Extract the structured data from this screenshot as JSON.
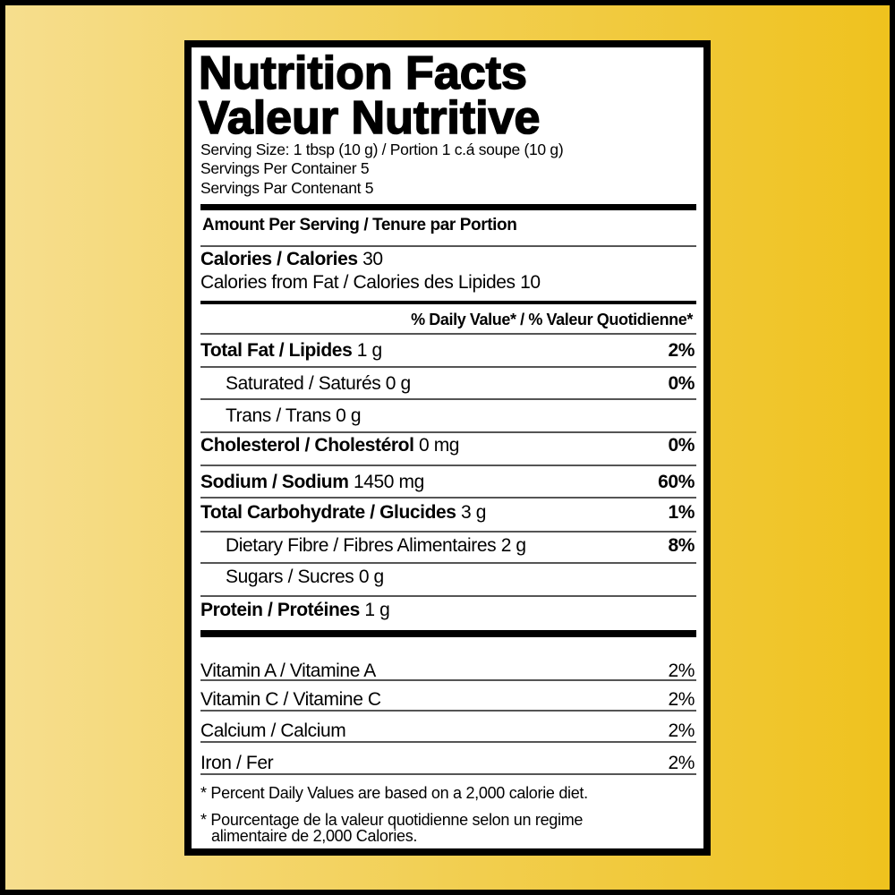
{
  "title": {
    "line1": "Nutrition Facts",
    "line2": "Valeur Nutritive"
  },
  "serving": {
    "size": "Serving Size: 1 tbsp (10 g) / Portion 1 c.á soupe (10 g)",
    "per_container_en": "Servings Per Container 5",
    "per_container_fr": "Servings Par Contenant 5"
  },
  "amount_header": "Amount Per Serving / Tenure par Portion",
  "calories": {
    "label": "Calories / Calories",
    "value": "30",
    "from_fat": "Calories from Fat / Calories des Lipides 10"
  },
  "dv_header": "% Daily Value* / % Valeur Quotidienne*",
  "nutrients": [
    {
      "label": "Total Fat / Lipides",
      "amount": "1 g",
      "dv": "2%",
      "bold": true
    },
    {
      "label": "Saturated / Saturés",
      "amount": "0 g",
      "dv": "0%",
      "bold": false
    },
    {
      "label": "Trans / Trans",
      "amount": "0 g",
      "dv": "",
      "bold": false
    },
    {
      "label": "Cholesterol / Cholestérol",
      "amount": "0 mg",
      "dv": "0%",
      "bold": true
    },
    {
      "label": "Sodium / Sodium",
      "amount": "1450 mg",
      "dv": "60%",
      "bold": true
    },
    {
      "label": "Total Carbohydrate / Glucides",
      "amount": "3 g",
      "dv": "1%",
      "bold": true
    },
    {
      "label": "Dietary Fibre / Fibres Alimentaires",
      "amount": "2 g",
      "dv": "8%",
      "bold": false
    },
    {
      "label": "Sugars / Sucres",
      "amount": "0 g",
      "dv": "",
      "bold": false
    },
    {
      "label": "Protein / Protéines",
      "amount": "1 g",
      "dv": "",
      "bold": true
    }
  ],
  "vitamins": [
    {
      "label": "Vitamin A / Vitamine A",
      "dv": "2%"
    },
    {
      "label": "Vitamin C / Vitamine C",
      "dv": "2%"
    },
    {
      "label": "Calcium / Calcium",
      "dv": "2%"
    },
    {
      "label": "Iron / Fer",
      "dv": "2%"
    }
  ],
  "footnotes": {
    "en": "* Percent Daily Values are based on a 2,000 calorie diet.",
    "fr_line1": "* Pourcentage de la valeur quotidienne selon un regime",
    "fr_line2": "alimentaire de 2,000 Calories."
  },
  "colors": {
    "background_left": "#f6de8e",
    "background_right": "#efc21e",
    "border": "#000000"
  }
}
